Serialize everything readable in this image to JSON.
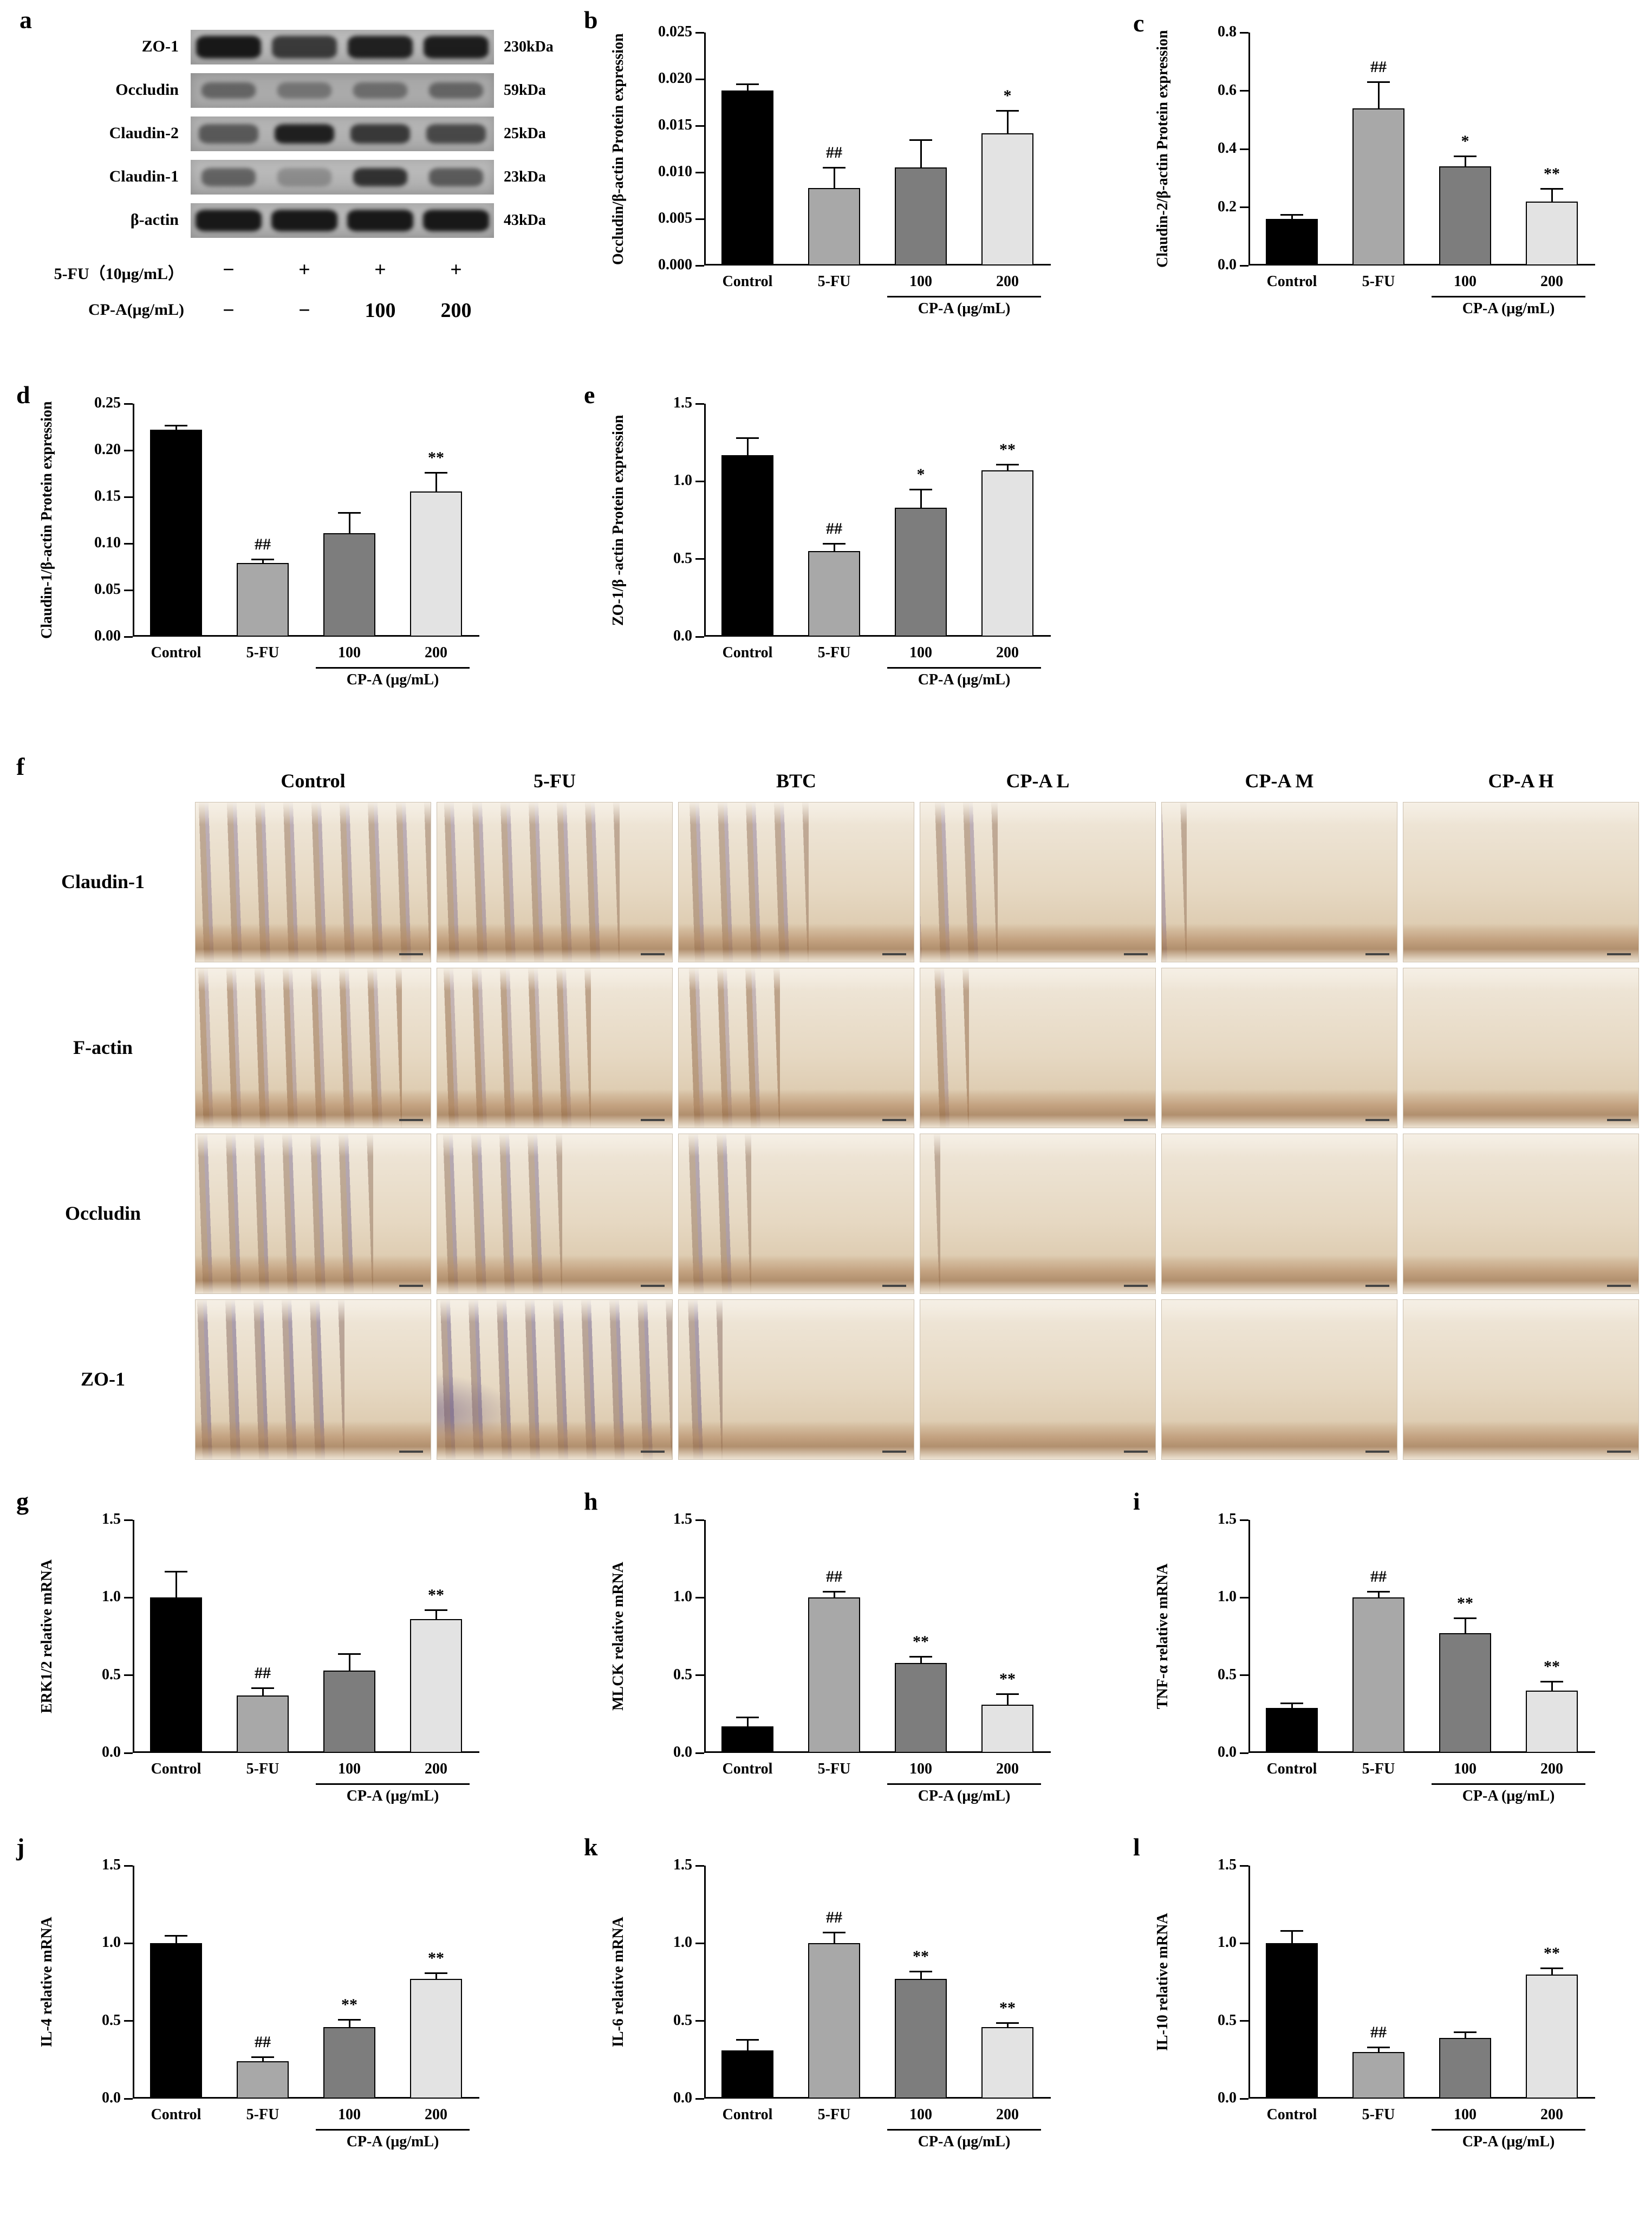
{
  "panel_letters": {
    "a": "a",
    "b": "b",
    "c": "c",
    "d": "d",
    "e": "e",
    "f": "f",
    "g": "g",
    "h": "h",
    "i": "i",
    "j": "j",
    "k": "k",
    "l": "l"
  },
  "bar_colors": [
    "#000000",
    "#a8a8a8",
    "#7d7d7d",
    "#e3e3e3"
  ],
  "western_blot": {
    "rows": [
      {
        "protein": "ZO-1",
        "kda": "230kDa",
        "bands": [
          0.95,
          0.75,
          0.9,
          0.92
        ],
        "band_h": 42,
        "band_w": 120,
        "bg": "#c2c2c2"
      },
      {
        "protein": "Occludin",
        "kda": "59kDa",
        "bands": [
          0.45,
          0.35,
          0.4,
          0.45
        ],
        "band_h": 30,
        "band_w": 100,
        "bg": "#a8a8a8"
      },
      {
        "protein": "Claudin-2",
        "kda": "25kDa",
        "bands": [
          0.55,
          0.9,
          0.75,
          0.65
        ],
        "band_h": 36,
        "band_w": 110,
        "bg": "#b8b8b8"
      },
      {
        "protein": "Claudin-1",
        "kda": "23kDa",
        "bands": [
          0.5,
          0.25,
          0.8,
          0.55
        ],
        "band_h": 34,
        "band_w": 100,
        "bg": "#c0c0c0"
      },
      {
        "protein": "β-actin",
        "kda": "43kDa",
        "bands": [
          0.95,
          0.95,
          0.95,
          0.95
        ],
        "band_h": 40,
        "band_w": 122,
        "bg": "#bcbcbc"
      }
    ],
    "treatment_rows": [
      {
        "label": "5-FU（10μg/mL）",
        "values": [
          "−",
          "+",
          "+",
          "+"
        ]
      },
      {
        "label": "CP-A(μg/mL)",
        "values": [
          "−",
          "−",
          "100",
          "200"
        ]
      }
    ]
  },
  "ihc": {
    "columns": [
      "Control",
      "5-FU",
      "BTC",
      "CP-A L",
      "CP-A M",
      "CP-A H"
    ],
    "rows": [
      "Claudin-1",
      "F-actin",
      "Occludin",
      "ZO-1"
    ]
  },
  "chart_data": [
    {
      "panel": "b",
      "type": "bar",
      "ylabel": "Occludin/β-actin Protein expression",
      "ylim": [
        0,
        0.025
      ],
      "yticks": [
        0,
        0.005,
        0.01,
        0.015,
        0.02,
        0.025
      ],
      "ytick_labels": [
        "0.000",
        "0.005",
        "0.010",
        "0.015",
        "0.020",
        "0.025"
      ],
      "categories": [
        "Control",
        "5-FU",
        "100",
        "200"
      ],
      "values": [
        0.0188,
        0.0083,
        0.0105,
        0.0142
      ],
      "errors": [
        0.0007,
        0.0022,
        0.003,
        0.0024
      ],
      "annotations": [
        "",
        "##",
        "",
        "*"
      ],
      "group_label": "CP-A (μg/mL)"
    },
    {
      "panel": "c",
      "type": "bar",
      "ylabel": "Claudin-2/β-actin Protein expression",
      "ylim": [
        0,
        0.8
      ],
      "yticks": [
        0,
        0.2,
        0.4,
        0.6,
        0.8
      ],
      "ytick_labels": [
        "0.0",
        "0.2",
        "0.4",
        "0.6",
        "0.8"
      ],
      "categories": [
        "Control",
        "5-FU",
        "100",
        "200"
      ],
      "values": [
        0.16,
        0.54,
        0.34,
        0.22
      ],
      "errors": [
        0.015,
        0.09,
        0.035,
        0.045
      ],
      "annotations": [
        "",
        "##",
        "*",
        "**"
      ],
      "group_label": "CP-A (μg/mL)"
    },
    {
      "panel": "d",
      "type": "bar",
      "ylabel": "Claudin-1/β-actin Protein expression",
      "ylim": [
        0,
        0.25
      ],
      "yticks": [
        0,
        0.05,
        0.1,
        0.15,
        0.2,
        0.25
      ],
      "ytick_labels": [
        "0.00",
        "0.05",
        "0.10",
        "0.15",
        "0.20",
        "0.25"
      ],
      "categories": [
        "Control",
        "5-FU",
        "100",
        "200"
      ],
      "values": [
        0.222,
        0.079,
        0.111,
        0.156
      ],
      "errors": [
        0.005,
        0.004,
        0.022,
        0.02
      ],
      "annotations": [
        "",
        "##",
        "",
        "**"
      ],
      "group_label": "CP-A (μg/mL)"
    },
    {
      "panel": "e",
      "type": "bar",
      "ylabel": "ZO-1/β -actin Protein expression",
      "ylim": [
        0,
        1.5
      ],
      "yticks": [
        0,
        0.5,
        1,
        1.5
      ],
      "ytick_labels": [
        "0.0",
        "0.5",
        "1.0",
        "1.5"
      ],
      "categories": [
        "Control",
        "5-FU",
        "100",
        "200"
      ],
      "values": [
        1.17,
        0.55,
        0.83,
        1.07
      ],
      "errors": [
        0.11,
        0.05,
        0.12,
        0.04
      ],
      "annotations": [
        "",
        "##",
        "*",
        "**"
      ],
      "group_label": "CP-A (μg/mL)"
    },
    {
      "panel": "g",
      "type": "bar",
      "ylabel": "ERK1/2 relative mRNA",
      "ylim": [
        0,
        1.5
      ],
      "yticks": [
        0,
        0.5,
        1,
        1.5
      ],
      "ytick_labels": [
        "0.0",
        "0.5",
        "1.0",
        "1.5"
      ],
      "categories": [
        "Control",
        "5-FU",
        "100",
        "200"
      ],
      "values": [
        1.0,
        0.37,
        0.53,
        0.86
      ],
      "errors": [
        0.17,
        0.05,
        0.11,
        0.06
      ],
      "annotations": [
        "",
        "##",
        "",
        "**"
      ],
      "group_label": "CP-A (μg/mL)"
    },
    {
      "panel": "h",
      "type": "bar",
      "ylabel": "MLCK relative mRNA",
      "ylim": [
        0,
        1.5
      ],
      "yticks": [
        0,
        0.5,
        1,
        1.5
      ],
      "ytick_labels": [
        "0.0",
        "0.5",
        "1.0",
        "1.5"
      ],
      "categories": [
        "Control",
        "5-FU",
        "100",
        "200"
      ],
      "values": [
        0.17,
        1.0,
        0.58,
        0.31
      ],
      "errors": [
        0.06,
        0.04,
        0.04,
        0.07
      ],
      "annotations": [
        "",
        "##",
        "**",
        "**"
      ],
      "group_label": "CP-A (μg/mL)"
    },
    {
      "panel": "i",
      "type": "bar",
      "ylabel": "TNF-α relative mRNA",
      "ylim": [
        0,
        1.5
      ],
      "yticks": [
        0,
        0.5,
        1,
        1.5
      ],
      "ytick_labels": [
        "0.0",
        "0.5",
        "1.0",
        "1.5"
      ],
      "categories": [
        "Control",
        "5-FU",
        "100",
        "200"
      ],
      "values": [
        0.29,
        1.0,
        0.77,
        0.4
      ],
      "errors": [
        0.03,
        0.04,
        0.1,
        0.06
      ],
      "annotations": [
        "",
        "##",
        "**",
        "**"
      ],
      "group_label": "CP-A (μg/mL)"
    },
    {
      "panel": "j",
      "type": "bar",
      "ylabel": "IL-4 relative mRNA",
      "ylim": [
        0,
        1.5
      ],
      "yticks": [
        0,
        0.5,
        1,
        1.5
      ],
      "ytick_labels": [
        "0.0",
        "0.5",
        "1.0",
        "1.5"
      ],
      "categories": [
        "Control",
        "5-FU",
        "100",
        "200"
      ],
      "values": [
        1.0,
        0.24,
        0.46,
        0.77
      ],
      "errors": [
        0.05,
        0.03,
        0.05,
        0.04
      ],
      "annotations": [
        "",
        "##",
        "**",
        "**"
      ],
      "group_label": "CP-A (μg/mL)"
    },
    {
      "panel": "k",
      "type": "bar",
      "ylabel": "IL-6 relative mRNA",
      "ylim": [
        0,
        1.5
      ],
      "yticks": [
        0,
        0.5,
        1,
        1.5
      ],
      "ytick_labels": [
        "0.0",
        "0.5",
        "1.0",
        "1.5"
      ],
      "categories": [
        "Control",
        "5-FU",
        "100",
        "200"
      ],
      "values": [
        0.31,
        1.0,
        0.77,
        0.46
      ],
      "errors": [
        0.07,
        0.07,
        0.05,
        0.03
      ],
      "annotations": [
        "",
        "##",
        "**",
        "**"
      ],
      "group_label": "CP-A (μg/mL)"
    },
    {
      "panel": "l",
      "type": "bar",
      "ylabel": "IL-10 relative mRNA",
      "ylim": [
        0,
        1.5
      ],
      "yticks": [
        0,
        0.5,
        1,
        1.5
      ],
      "ytick_labels": [
        "0.0",
        "0.5",
        "1.0",
        "1.5"
      ],
      "categories": [
        "Control",
        "5-FU",
        "100",
        "200"
      ],
      "values": [
        1.0,
        0.3,
        0.39,
        0.8
      ],
      "errors": [
        0.08,
        0.03,
        0.04,
        0.04
      ],
      "annotations": [
        "",
        "##",
        "",
        "**"
      ],
      "group_label": "CP-A (μg/mL)"
    }
  ]
}
